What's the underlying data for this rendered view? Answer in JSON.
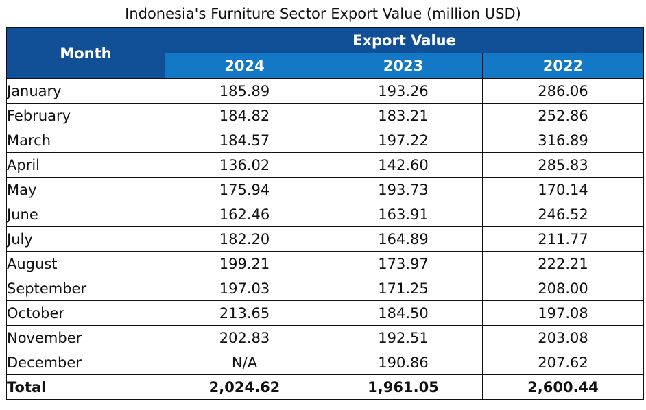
{
  "chart_data": {
    "type": "table",
    "title": "Indonesia's Furniture Sector Export Value (million USD)",
    "header": {
      "month_label": "Month",
      "group_label": "Export Value",
      "years": [
        "2024",
        "2023",
        "2022"
      ]
    },
    "rows": [
      {
        "month": "January",
        "values": [
          "185.89",
          "193.26",
          "286.06"
        ]
      },
      {
        "month": "February",
        "values": [
          "184.82",
          "183.21",
          "252.86"
        ]
      },
      {
        "month": "March",
        "values": [
          "184.57",
          "197.22",
          "316.89"
        ]
      },
      {
        "month": "April",
        "values": [
          "136.02",
          "142.60",
          "285.83"
        ]
      },
      {
        "month": "May",
        "values": [
          "175.94",
          "193.73",
          "170.14"
        ]
      },
      {
        "month": "June",
        "values": [
          "162.46",
          "163.91",
          "246.52"
        ]
      },
      {
        "month": "July",
        "values": [
          "182.20",
          "164.89",
          "211.77"
        ]
      },
      {
        "month": "August",
        "values": [
          "199.21",
          "173.97",
          "222.21"
        ]
      },
      {
        "month": "September",
        "values": [
          "197.03",
          "171.25",
          "208.00"
        ]
      },
      {
        "month": "October",
        "values": [
          "213.65",
          "184.50",
          "197.08"
        ]
      },
      {
        "month": "November",
        "values": [
          "202.83",
          "192.51",
          "203.08"
        ]
      },
      {
        "month": "December",
        "values": [
          "N/A",
          "190.86",
          "207.62"
        ]
      }
    ],
    "total": {
      "label": "Total",
      "values": [
        "2,024.62",
        "1,961.05",
        "2,600.44"
      ]
    }
  },
  "colors": {
    "header_dark": "#114f97",
    "header_light": "#1378c6",
    "header_text": "#ffffff",
    "border": "#111111"
  }
}
